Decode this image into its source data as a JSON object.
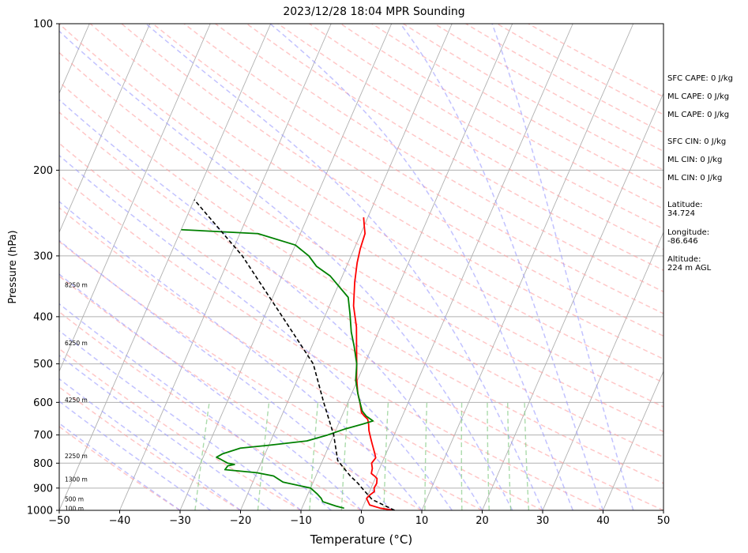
{
  "chart_data": {
    "type": "line",
    "title": "2023/12/28 18:04 MPR Sounding",
    "xlabel": "Temperature (°C)",
    "ylabel": "Pressure (hPa)",
    "xlim": [
      -50,
      50
    ],
    "ylim": [
      1000,
      100
    ],
    "y_scale": "log",
    "grid": true,
    "x_ticks": [
      "−50",
      "−40",
      "−30",
      "−20",
      "−10",
      "0",
      "10",
      "20",
      "30",
      "40",
      "50"
    ],
    "y_ticks": [
      "1000",
      "900",
      "800",
      "700",
      "600",
      "500",
      "400",
      "300",
      "200",
      "100"
    ],
    "height_labels": [
      {
        "text": "100 m",
        "p": 990
      },
      {
        "text": "500 m",
        "p": 948
      },
      {
        "text": "1300 m",
        "p": 863
      },
      {
        "text": "2250 m",
        "p": 772
      },
      {
        "text": "4250 m",
        "p": 593
      },
      {
        "text": "6250 m",
        "p": 453
      },
      {
        "text": "8250 m",
        "p": 344
      }
    ],
    "series": [
      {
        "color": "#ff0000",
        "points": [
          [
            5.5,
            1000
          ],
          [
            3.0,
            990
          ],
          [
            1.0,
            975
          ],
          [
            0.5,
            960
          ],
          [
            0.0,
            945
          ],
          [
            0.3,
            930
          ],
          [
            0.8,
            915
          ],
          [
            0.5,
            900
          ],
          [
            0.6,
            880
          ],
          [
            0.3,
            860
          ],
          [
            -0.3,
            850
          ],
          [
            -1.0,
            840
          ],
          [
            -1.2,
            820
          ],
          [
            -1.7,
            800
          ],
          [
            -1.4,
            780
          ],
          [
            -2.0,
            760
          ],
          [
            -3.0,
            730
          ],
          [
            -3.5,
            715
          ],
          [
            -4.0,
            700
          ],
          [
            -4.5,
            685
          ],
          [
            -5.0,
            665
          ],
          [
            -5.5,
            650
          ],
          [
            -6.3,
            640
          ],
          [
            -7.0,
            630
          ],
          [
            -8.0,
            600
          ],
          [
            -9.0,
            575
          ],
          [
            -10.3,
            535
          ],
          [
            -11.3,
            500
          ],
          [
            -12.6,
            460
          ],
          [
            -14.0,
            420
          ],
          [
            -16.0,
            380
          ],
          [
            -17.5,
            340
          ],
          [
            -18.5,
            310
          ],
          [
            -19.0,
            290
          ],
          [
            -19.3,
            270
          ],
          [
            -20.0,
            260
          ],
          [
            -20.7,
            250
          ]
        ]
      },
      {
        "color": "#008000",
        "points": [
          [
            -3.0,
            990
          ],
          [
            -4.5,
            980
          ],
          [
            -7.0,
            960
          ],
          [
            -7.5,
            945
          ],
          [
            -8.5,
            925
          ],
          [
            -10.0,
            900
          ],
          [
            -15.0,
            875
          ],
          [
            -17.0,
            850
          ],
          [
            -20.0,
            837
          ],
          [
            -25.5,
            825
          ],
          [
            -25.3,
            810
          ],
          [
            -24.3,
            805
          ],
          [
            -25.5,
            800
          ],
          [
            -27.0,
            785
          ],
          [
            -27.8,
            778
          ],
          [
            -27.0,
            765
          ],
          [
            -24.5,
            745
          ],
          [
            -20.0,
            735
          ],
          [
            -14.0,
            720
          ],
          [
            -11.0,
            700
          ],
          [
            -8.5,
            680
          ],
          [
            -6.0,
            665
          ],
          [
            -4.5,
            655
          ],
          [
            -6.0,
            640
          ],
          [
            -7.0,
            625
          ],
          [
            -8.0,
            600
          ],
          [
            -9.0,
            575
          ],
          [
            -10.3,
            540
          ],
          [
            -11.3,
            500
          ],
          [
            -13.0,
            460
          ],
          [
            -14.5,
            430
          ],
          [
            -16.0,
            395
          ],
          [
            -17.5,
            365
          ],
          [
            -22.0,
            330
          ],
          [
            -25.0,
            315
          ],
          [
            -27.0,
            300
          ],
          [
            -30.0,
            285
          ],
          [
            -37.0,
            270
          ],
          [
            -50.0,
            265
          ]
        ]
      },
      {
        "color": "#000000",
        "dashed": true,
        "points": [
          [
            5.5,
            1000
          ],
          [
            1.0,
            950
          ],
          [
            -1.5,
            900
          ],
          [
            -2.5,
            880
          ],
          [
            -4.3,
            850
          ],
          [
            -7.5,
            790
          ],
          [
            -10.0,
            700
          ],
          [
            -14.0,
            600
          ],
          [
            -18.5,
            500
          ],
          [
            -27.0,
            400
          ],
          [
            -38.0,
            300
          ],
          [
            -50.0,
            230
          ]
        ]
      }
    ],
    "side_info": [
      "SFC CAPE: 0 J/kg",
      "ML CAPE: 0 J/kg",
      "ML CAPE: 0 J/kg",
      "SFC CIN: 0 J/kg",
      "ML CIN: 0 J/kg",
      "ML CIN: 0 J/kg",
      "Latitude:\n34.724",
      "Longitude:\n-86.646",
      "Altitude:\n224 m AGL"
    ],
    "colors": {
      "isotherm": "#b0b0b0",
      "dry_adiabat": "#ff9999",
      "moist_adiabat": "#9999ff",
      "mixing_ratio": "#88cc88"
    }
  }
}
